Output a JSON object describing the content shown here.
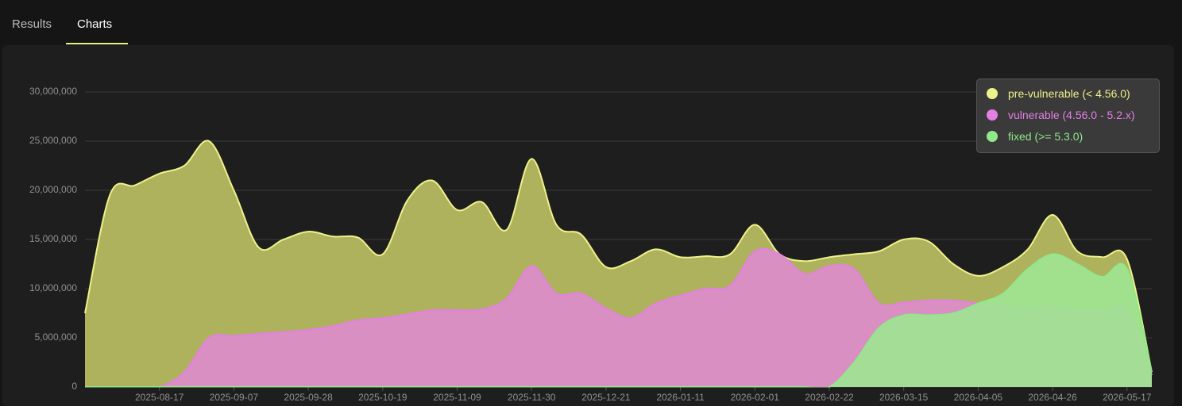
{
  "tabs": [
    "Results",
    "Charts"
  ],
  "active_tab": 1,
  "chart_data": {
    "type": "area",
    "x": [
      "2025-07-27",
      "2025-08-03",
      "2025-08-10",
      "2025-08-17",
      "2025-08-24",
      "2025-08-31",
      "2025-09-07",
      "2025-09-14",
      "2025-09-21",
      "2025-09-28",
      "2025-10-05",
      "2025-10-12",
      "2025-10-19",
      "2025-10-26",
      "2025-11-02",
      "2025-11-09",
      "2025-11-16",
      "2025-11-23",
      "2025-11-30",
      "2025-12-07",
      "2025-12-14",
      "2025-12-21",
      "2025-12-28",
      "2026-01-04",
      "2026-01-11",
      "2026-01-18",
      "2026-01-25",
      "2026-02-01",
      "2026-02-08",
      "2026-02-15",
      "2026-02-22",
      "2026-03-01",
      "2026-03-08",
      "2026-03-15",
      "2026-03-22",
      "2026-03-29",
      "2026-04-05",
      "2026-04-12",
      "2026-04-19",
      "2026-04-26",
      "2026-05-03",
      "2026-05-10",
      "2026-05-17",
      "2026-05-24"
    ],
    "series": [
      {
        "name": "pre-vulnerable (< 4.56.0)",
        "color": "#eef28a",
        "fill": "#bcbf63",
        "values": [
          7500000,
          19500000,
          20500000,
          21700000,
          22500000,
          25000000,
          20000000,
          14200000,
          15000000,
          15800000,
          15300000,
          15200000,
          13500000,
          19000000,
          21000000,
          18000000,
          18800000,
          16000000,
          23200000,
          16500000,
          15500000,
          12200000,
          12800000,
          14000000,
          13200000,
          13300000,
          13500000,
          16500000,
          13500000,
          12800000,
          13200000,
          13500000,
          13800000,
          15000000,
          14800000,
          12500000,
          11300000,
          12200000,
          14000000,
          17500000,
          13800000,
          13200000,
          13000000,
          1500000
        ]
      },
      {
        "name": "vulnerable (4.56.0 - 5.2.x)",
        "color": "#e47fe4",
        "fill": "#dd8ccc",
        "values": [
          0,
          0,
          0,
          0,
          1500000,
          5000000,
          5200000,
          5400000,
          5600000,
          5800000,
          6200000,
          6800000,
          7000000,
          7400000,
          7800000,
          7800000,
          7900000,
          9000000,
          12300000,
          9500000,
          9500000,
          8000000,
          7000000,
          8500000,
          9300000,
          10000000,
          10300000,
          13800000,
          13500000,
          11500000,
          12300000,
          12000000,
          8500000,
          8600000,
          8800000,
          8800000,
          8500000,
          8200000,
          8000000,
          8200000,
          7800000,
          7800000,
          7800000,
          1200000
        ]
      },
      {
        "name": "fixed (>= 5.3.0)",
        "color": "#8fe88a",
        "fill": "#9fe592",
        "values": [
          0,
          0,
          0,
          0,
          0,
          0,
          0,
          0,
          0,
          0,
          0,
          0,
          0,
          0,
          0,
          0,
          0,
          0,
          0,
          0,
          0,
          0,
          0,
          0,
          0,
          0,
          0,
          0,
          0,
          0,
          0,
          2500000,
          6000000,
          7300000,
          7300000,
          7500000,
          8500000,
          9500000,
          12000000,
          13500000,
          12500000,
          11200000,
          12000000,
          1500000
        ]
      }
    ],
    "xlim": [
      "2025-07-27",
      "2026-05-24"
    ],
    "xticks": [
      "2025-08-17",
      "2025-09-07",
      "2025-09-28",
      "2025-10-19",
      "2025-11-09",
      "2025-11-30",
      "2025-12-21",
      "2026-01-11",
      "2026-02-01",
      "2026-02-22",
      "2026-03-15",
      "2026-04-05",
      "2026-04-26",
      "2026-05-17"
    ],
    "ylim": [
      0,
      30000000
    ],
    "yticks": [
      0,
      {
        "value": 5000000,
        "label": "5,000,000"
      },
      {
        "value": 10000000,
        "label": "10,000,000"
      },
      {
        "value": 15000000,
        "label": "15,000,000"
      },
      {
        "value": 20000000,
        "label": "20,000,000"
      },
      {
        "value": 25000000,
        "label": "25,000,000"
      },
      {
        "value": 30000000,
        "label": "30,000,000"
      }
    ],
    "grid": true,
    "legend": "top-right"
  }
}
